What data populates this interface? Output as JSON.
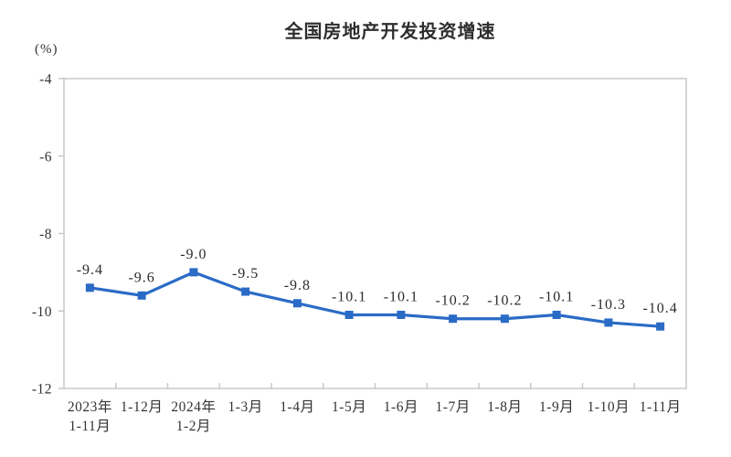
{
  "chart_data": {
    "type": "line",
    "title": "全国房地产开发投资增速",
    "unit_label": "(%)",
    "categories": [
      [
        "2023年",
        "1-11月"
      ],
      [
        "1-12月"
      ],
      [
        "2024年",
        "1-2月"
      ],
      [
        "1-3月"
      ],
      [
        "1-4月"
      ],
      [
        "1-5月"
      ],
      [
        "1-6月"
      ],
      [
        "1-7月"
      ],
      [
        "1-8月"
      ],
      [
        "1-9月"
      ],
      [
        "1-10月"
      ],
      [
        "1-11月"
      ]
    ],
    "values": [
      -9.4,
      -9.6,
      -9.0,
      -9.5,
      -9.8,
      -10.1,
      -10.1,
      -10.2,
      -10.2,
      -10.1,
      -10.3,
      -10.4
    ],
    "data_labels": [
      "-9.4",
      "-9.6",
      "-9.0",
      "-9.5",
      "-9.8",
      "-10.1",
      "-10.1",
      "-10.2",
      "-10.2",
      "-10.1",
      "-10.3",
      "-10.4"
    ],
    "y_ticks": [
      -4,
      -6,
      -8,
      -10,
      -12
    ],
    "ylim": [
      -12,
      -4
    ],
    "xlabel": "",
    "ylabel": "(%)",
    "grid": false,
    "legend": "none",
    "colors": {
      "line": "#2a6bc6",
      "marker": "#2a6bc6",
      "axis": "#c9c9c9",
      "text": "#333333",
      "title": "#2e2e2e"
    }
  }
}
